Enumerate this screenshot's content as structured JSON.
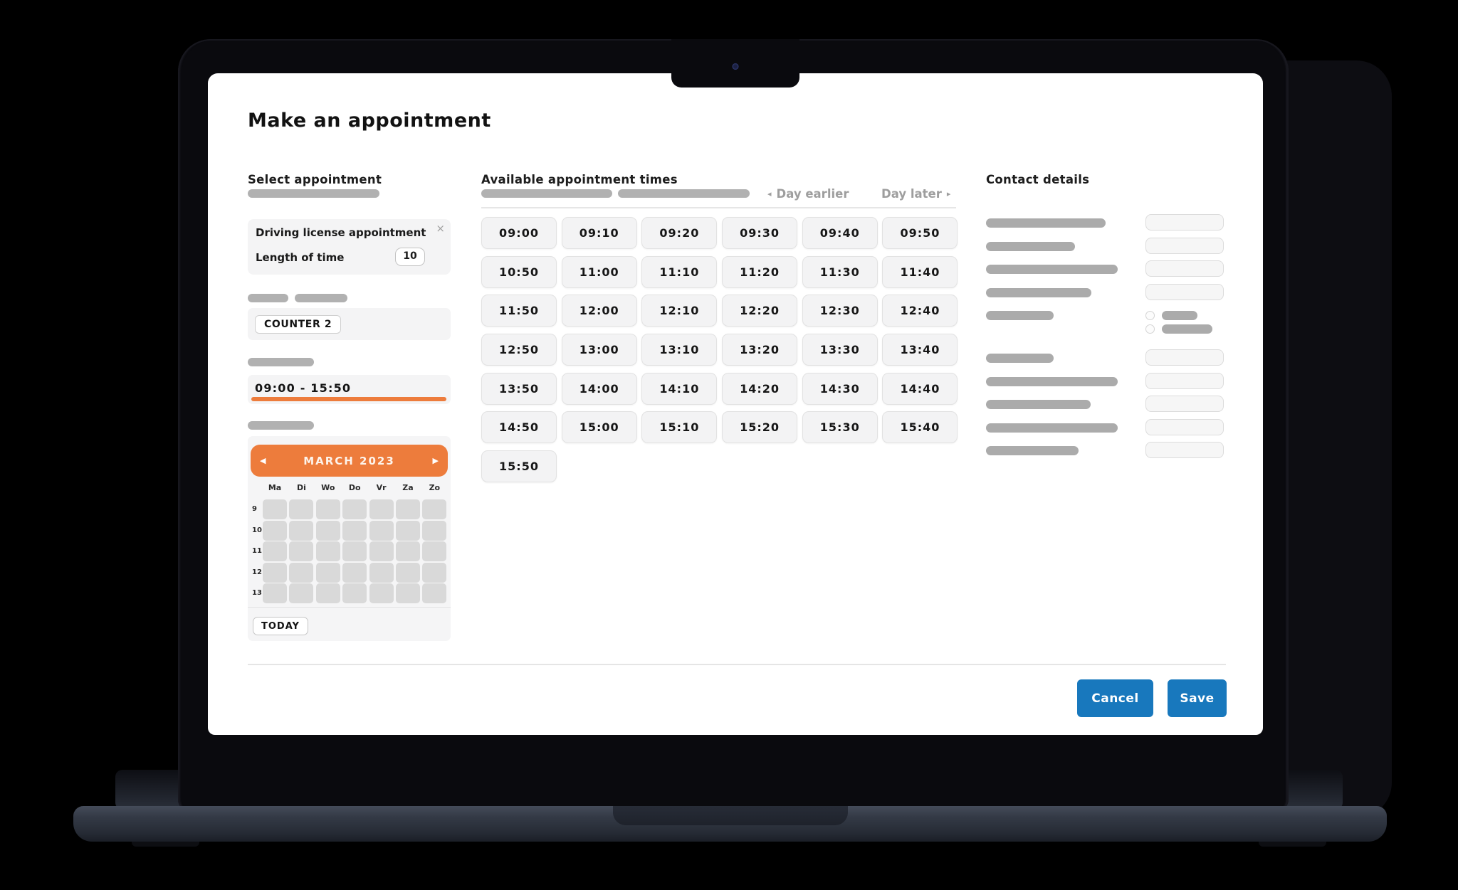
{
  "page": {
    "title": "Make an appointment"
  },
  "select_appointment": {
    "heading": "Select appointment",
    "card": {
      "title": "Driving license appointment",
      "close_icon": "×",
      "length_label": "Length of time",
      "length_value": "10"
    },
    "counter_label": "COUNTER 2",
    "time_range": "09:00 - 15:50",
    "calendar": {
      "prev_icon": "◀",
      "next_icon": "▶",
      "month_label": "MARCH 2023",
      "weekdays": [
        "Ma",
        "Di",
        "Wo",
        "Do",
        "Vr",
        "Za",
        "Zo"
      ],
      "week_numbers": [
        "9",
        "10",
        "11",
        "12",
        "13"
      ],
      "today_label": "TODAY"
    }
  },
  "available_times": {
    "heading": "Available appointment times",
    "day_earlier_icon": "◂",
    "day_earlier_label": "Day earlier",
    "day_later_label": "Day later",
    "day_later_icon": "▸",
    "slots": [
      "09:00",
      "09:10",
      "09:20",
      "09:30",
      "09:40",
      "09:50",
      "10:50",
      "11:00",
      "11:10",
      "11:20",
      "11:30",
      "11:40",
      "11:50",
      "12:00",
      "12:10",
      "12:20",
      "12:30",
      "12:40",
      "12:50",
      "13:00",
      "13:10",
      "13:20",
      "13:30",
      "13:40",
      "13:50",
      "14:00",
      "14:10",
      "14:20",
      "14:30",
      "14:40",
      "14:50",
      "15:00",
      "15:10",
      "15:20",
      "15:30",
      "15:40",
      "15:50"
    ]
  },
  "contact_details": {
    "heading": "Contact details",
    "skeleton_group1_label_widths": [
      168,
      125,
      185,
      148
    ],
    "skeleton_radio_label_width": 95,
    "skeleton_radio_option_widths": [
      50,
      71
    ],
    "skeleton_group2_label_widths": [
      95,
      185,
      147,
      185,
      130
    ]
  },
  "footer": {
    "cancel_label": "Cancel",
    "save_label": "Save"
  },
  "colors": {
    "accent_orange": "#ed7c3c",
    "accent_blue": "#1878bd"
  }
}
